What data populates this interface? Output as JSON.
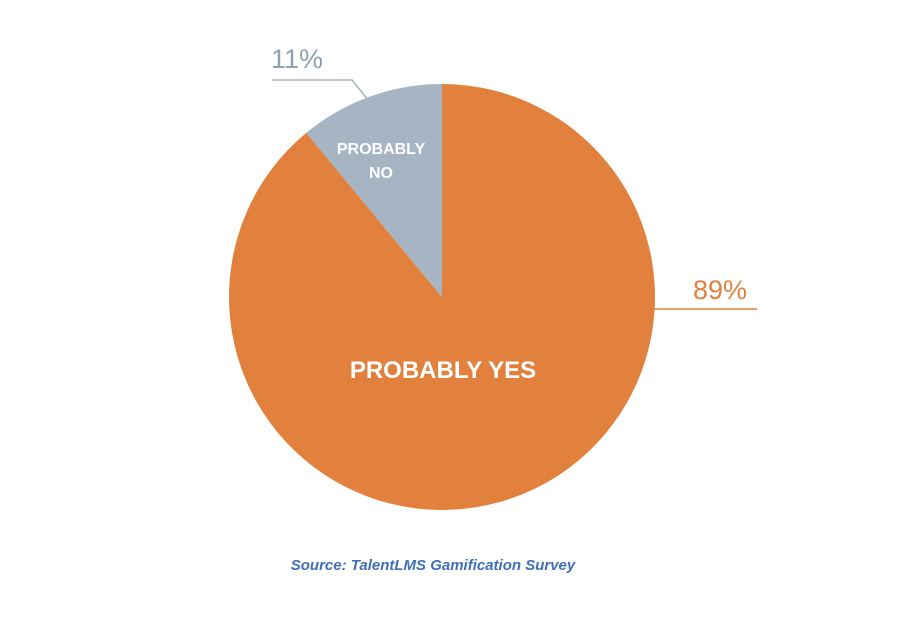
{
  "chart_data": {
    "type": "pie",
    "slices": [
      {
        "label": "PROBABLY YES",
        "value": 89,
        "percent_label": "89%",
        "color": "#e2813d"
      },
      {
        "label_lines": [
          "PROBABLY",
          "NO"
        ],
        "value": 11,
        "percent_label": "11%",
        "color": "#a7b4c3"
      }
    ],
    "source": "Source: TalentLMS Gamification Survey"
  },
  "colors": {
    "yes_label": "#e2813d",
    "no_label": "#8fa0b4",
    "no_leader": "#a7b4c3",
    "source_text": "#3f6fb5"
  }
}
